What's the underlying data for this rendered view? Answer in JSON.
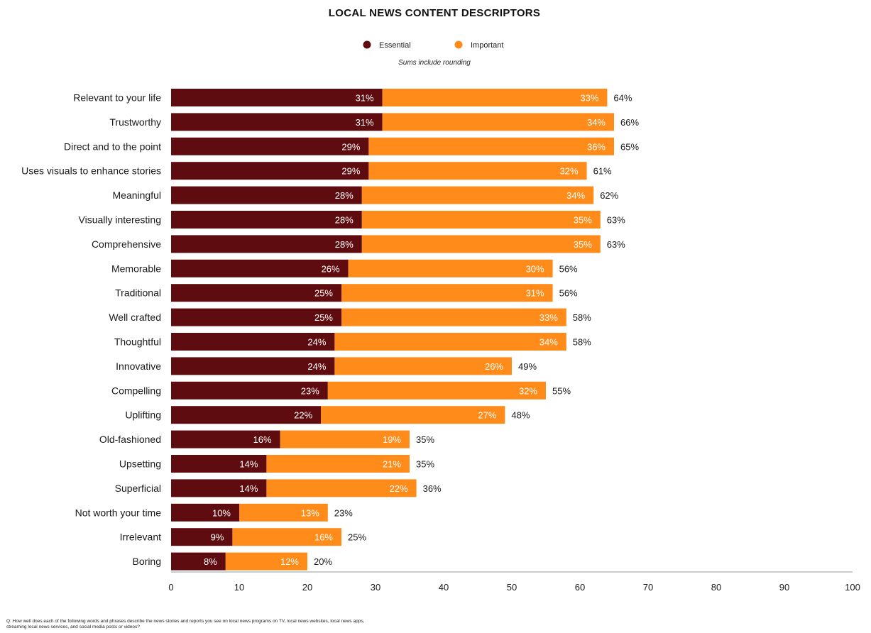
{
  "chart_data": {
    "type": "bar",
    "orientation": "horizontal",
    "stacked": true,
    "title": "LOCAL NEWS CONTENT DESCRIPTORS",
    "note": "Sums include rounding",
    "categories": [
      "Relevant to your life",
      "Trustworthy",
      "Direct and to the point",
      "Uses visuals to enhance stories",
      "Meaningful",
      "Visually interesting",
      "Comprehensive",
      "Memorable",
      "Traditional",
      "Well crafted",
      "Thoughtful",
      "Innovative",
      "Compelling",
      "Uplifting",
      "Old-fashioned",
      "Upsetting",
      "Superficial",
      "Not worth your time",
      "Irrelevant",
      "Boring"
    ],
    "series": [
      {
        "name": "Essential",
        "color": "#5e0c0f",
        "values": [
          31,
          31,
          29,
          29,
          28,
          28,
          28,
          26,
          25,
          25,
          24,
          24,
          23,
          22,
          16,
          14,
          14,
          10,
          9,
          8
        ]
      },
      {
        "name": "Important",
        "color": "#ff8c1a",
        "values": [
          33,
          34,
          36,
          32,
          34,
          35,
          35,
          30,
          31,
          33,
          34,
          26,
          32,
          27,
          19,
          21,
          22,
          13,
          16,
          12
        ]
      }
    ],
    "totals": [
      64,
      66,
      65,
      61,
      62,
      63,
      63,
      56,
      56,
      58,
      58,
      49,
      55,
      48,
      35,
      35,
      36,
      23,
      25,
      20
    ],
    "xlim": [
      0,
      100
    ],
    "xticks": [
      0,
      10,
      20,
      30,
      40,
      50,
      60,
      70,
      80,
      90,
      100
    ],
    "value_suffix": "%",
    "legend_position": "top-center",
    "grid": false
  },
  "footnote": "Q: How well does each of the following words and phrases describe the news stories and reports you see on local news programs on TV, local news websites, local news apps, streaming local news services, and social media posts or videos?"
}
